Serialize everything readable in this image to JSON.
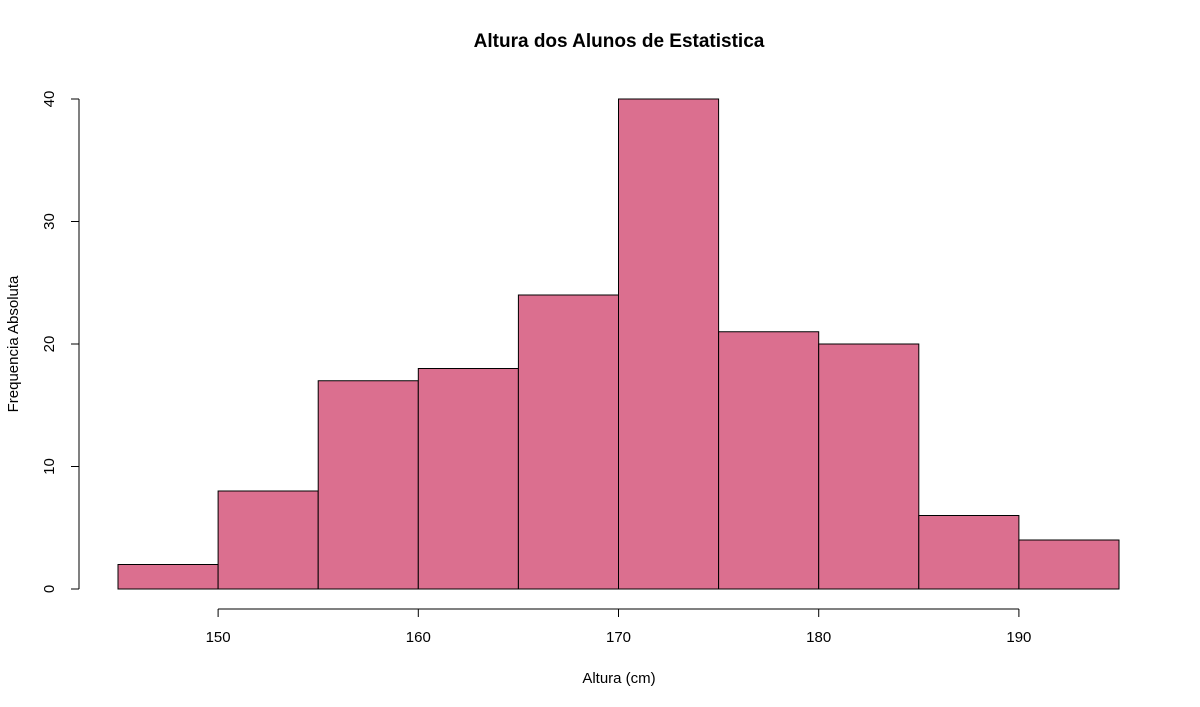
{
  "chart_data": {
    "type": "bar",
    "title": "Altura dos Alunos de Estatistica",
    "xlabel": "Altura (cm)",
    "ylabel": "Frequencia Absoluta",
    "bins": [
      {
        "start": 145,
        "end": 150,
        "count": 2
      },
      {
        "start": 150,
        "end": 155,
        "count": 8
      },
      {
        "start": 155,
        "end": 160,
        "count": 17
      },
      {
        "start": 160,
        "end": 165,
        "count": 18
      },
      {
        "start": 165,
        "end": 170,
        "count": 24
      },
      {
        "start": 170,
        "end": 175,
        "count": 40
      },
      {
        "start": 175,
        "end": 180,
        "count": 21
      },
      {
        "start": 180,
        "end": 185,
        "count": 20
      },
      {
        "start": 185,
        "end": 190,
        "count": 6
      },
      {
        "start": 190,
        "end": 195,
        "count": 4
      }
    ],
    "x_ticks": [
      150,
      160,
      170,
      180,
      190
    ],
    "y_ticks": [
      0,
      10,
      20,
      30,
      40
    ],
    "xlim": [
      145,
      195
    ],
    "ylim": [
      0,
      40
    ],
    "bar_color": "#db6f8f",
    "grid": false
  }
}
